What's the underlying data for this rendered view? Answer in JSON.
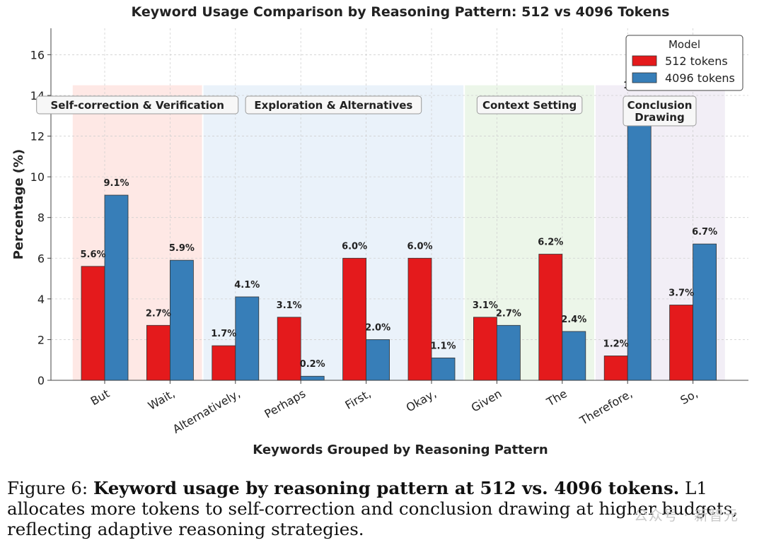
{
  "chart_data": {
    "type": "bar",
    "title": "Keyword Usage Comparison by Reasoning Pattern: 512 vs 4096 Tokens",
    "xlabel": "Keywords Grouped by Reasoning Pattern",
    "ylabel": "Percentage (%)",
    "ylim": [
      0,
      17.3
    ],
    "yticks": [
      0,
      2,
      4,
      6,
      8,
      10,
      12,
      14,
      16
    ],
    "categories": [
      "But",
      "Wait,",
      "Alternatively,",
      "Perhaps",
      "First,",
      "Okay,",
      "Given",
      "The",
      "Therefore,",
      "So,"
    ],
    "series": [
      {
        "name": "512 tokens",
        "color": "#e41a1c",
        "values": [
          5.6,
          2.7,
          1.7,
          3.1,
          6.0,
          6.0,
          3.1,
          6.2,
          1.2,
          3.7
        ],
        "labels": [
          "5.6%",
          "2.7%",
          "1.7%",
          "3.1%",
          "6.0%",
          "6.0%",
          "3.1%",
          "6.2%",
          "1.2%",
          "3.7%"
        ]
      },
      {
        "name": "4096 tokens",
        "color": "#377eb8",
        "values": [
          9.1,
          5.9,
          4.1,
          0.2,
          2.0,
          1.1,
          2.7,
          2.4,
          13.9,
          6.7
        ],
        "labels": [
          "9.1%",
          "5.9%",
          "4.1%",
          "0.2%",
          "2.0%",
          "1.1%",
          "2.7%",
          "2.4%",
          "13.9%",
          "6.7%"
        ]
      }
    ],
    "groups": [
      {
        "label": "Self-correction & Verification",
        "start": 0,
        "end": 1,
        "color": "#fde0dc"
      },
      {
        "label": "Exploration & Alternatives",
        "start": 2,
        "end": 5,
        "color": "#e3edf8"
      },
      {
        "label": "Context Setting",
        "start": 6,
        "end": 7,
        "color": "#e5f3e2"
      },
      {
        "label": "Conclusion\nDrawing",
        "start": 8,
        "end": 9,
        "color": "#ede8f3"
      }
    ],
    "legend": {
      "title": "Model",
      "position": "top-right"
    },
    "grid": true
  },
  "caption": {
    "prefix": "Figure 6: ",
    "bold": "Keyword usage by reasoning pattern at 512 vs. 4096 tokens.",
    "text": " L1 allocates more tokens to self-correction and conclusion drawing at higher budgets, reflecting adaptive reasoning strategies."
  },
  "watermark": "公众号 · 新智元"
}
